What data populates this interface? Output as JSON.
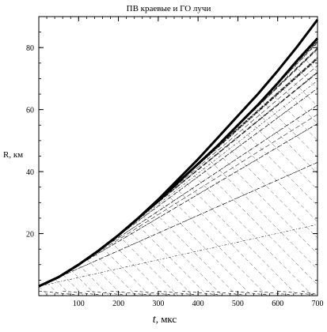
{
  "chart_data": {
    "type": "line",
    "title": "ПВ краевые и ГО лучи",
    "xlabel_var": "t",
    "xlabel_unit": ", мкс",
    "ylabel": "R, км",
    "xlim": [
      0,
      700
    ],
    "ylim": [
      0,
      90
    ],
    "x_ticks": [
      100,
      200,
      300,
      400,
      500,
      600,
      700
    ],
    "y_ticks": [
      20,
      40,
      60,
      80
    ],
    "grid": false,
    "legend": "none",
    "series": [
      {
        "style": "thick",
        "x": [
          0,
          50,
          100,
          150,
          200,
          250,
          300,
          350,
          400,
          450,
          500,
          550,
          600,
          650,
          700
        ],
        "y": [
          3,
          6,
          10,
          14.5,
          19.5,
          25,
          30.5,
          36.5,
          42.5,
          48.5,
          55,
          61.5,
          68.5,
          76,
          83
        ]
      },
      {
        "style": "thick",
        "x": [
          0,
          50,
          100,
          150,
          200,
          250,
          300,
          350,
          400,
          450,
          500,
          550,
          600,
          650,
          700
        ],
        "y": [
          3,
          6,
          10,
          14.5,
          19.5,
          25,
          31,
          37.5,
          44,
          51,
          58,
          65,
          72.5,
          80.5,
          89
        ]
      }
    ],
    "rays": {
      "description_free": true,
      "start_x_step": 20,
      "slope_fraction": 0.95
    }
  }
}
